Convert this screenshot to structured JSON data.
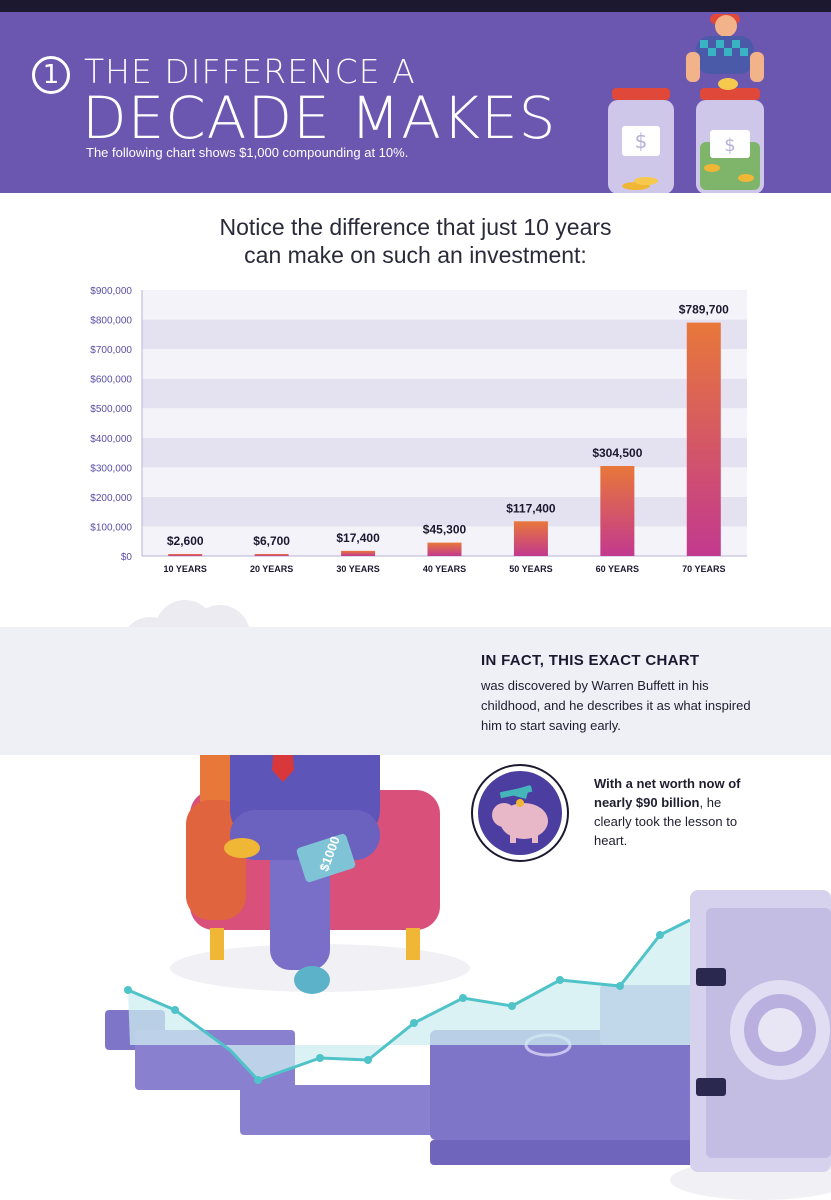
{
  "header": {
    "number": "1",
    "title_line1": "THE DIFFERENCE A",
    "title_line2": "DECADE MAKES",
    "subtitle": "The following chart shows $1,000 compounding at 10%."
  },
  "headline": {
    "line1": "Notice the difference that just 10 years",
    "line2": "can make on such an investment:"
  },
  "chart_data": {
    "type": "bar",
    "categories": [
      "10 YEARS",
      "20 YEARS",
      "30 YEARS",
      "40 YEARS",
      "50 YEARS",
      "60 YEARS",
      "70 YEARS"
    ],
    "values": [
      2600,
      6700,
      17400,
      45300,
      117400,
      304500,
      789700
    ],
    "value_labels": [
      "$2,600",
      "$6,700",
      "$17,400",
      "$45,300",
      "$117,400",
      "$304,500",
      "$789,700"
    ],
    "ylim": [
      0,
      900000
    ],
    "yticks": [
      0,
      100000,
      200000,
      300000,
      400000,
      500000,
      600000,
      700000,
      800000,
      900000
    ],
    "ytick_labels": [
      "$0",
      "$100,000",
      "$200,000",
      "$300,000",
      "$400,000",
      "$500,000",
      "$600,000",
      "$700,000",
      "$800,000",
      "$900,000"
    ],
    "grid": true
  },
  "fact": {
    "title": "IN FACT, THIS EXACT CHART",
    "body": "was discovered by Warren Buffett in his childhood, and he describes it as what inspired him to start saving early."
  },
  "worth": {
    "bold": "With a net worth now of nearly $90 billion",
    "rest": ", he clearly took the lesson to heart."
  },
  "book_label": "$1000",
  "colors": {
    "header_bg": "#6b56b0",
    "bar_top": "#e8773a",
    "bar_bottom": "#c2398f",
    "band_light": "#f4f3f9",
    "band_dark": "#e4e1f0"
  }
}
